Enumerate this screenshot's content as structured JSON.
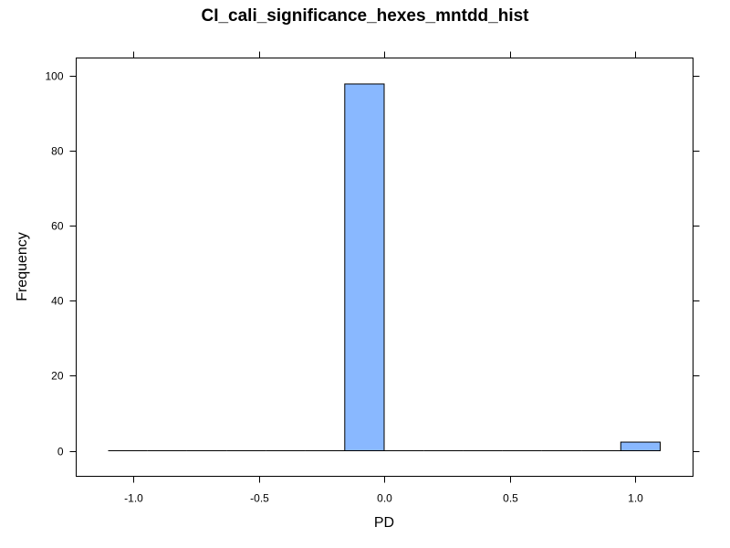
{
  "chart_data": {
    "type": "bar",
    "title": "CI_cali_significance_hexes_mntdd_hist",
    "xlabel": "PD",
    "ylabel": "Frequency",
    "xlim": [
      -1.1,
      1.1
    ],
    "ylim": [
      -7,
      104
    ],
    "x_ticks": [
      -1.0,
      -0.5,
      0.0,
      0.5,
      1.0
    ],
    "x_tick_labels": [
      "-1.0",
      "-0.5",
      "0.0",
      "0.5",
      "1.0"
    ],
    "y_ticks": [
      0,
      20,
      40,
      60,
      80,
      100
    ],
    "y_tick_labels": [
      "0",
      "20",
      "40",
      "60",
      "80",
      "100"
    ],
    "bin_start": -1.1,
    "bin_width": 0.1571,
    "bins": [
      {
        "x0": -1.1,
        "x1": -0.9429,
        "value": 0
      },
      {
        "x0": -0.9429,
        "x1": -0.7857,
        "value": 0
      },
      {
        "x0": -0.7857,
        "x1": -0.6286,
        "value": 0
      },
      {
        "x0": -0.6286,
        "x1": -0.4714,
        "value": 0
      },
      {
        "x0": -0.4714,
        "x1": -0.3143,
        "value": 0
      },
      {
        "x0": -0.3143,
        "x1": -0.1571,
        "value": 0
      },
      {
        "x0": -0.1571,
        "x1": 0.0,
        "value": 97.7
      },
      {
        "x0": 0.0,
        "x1": 0.1571,
        "value": 0
      },
      {
        "x0": 0.1571,
        "x1": 0.3143,
        "value": 0
      },
      {
        "x0": 0.3143,
        "x1": 0.4714,
        "value": 0
      },
      {
        "x0": 0.4714,
        "x1": 0.6286,
        "value": 0
      },
      {
        "x0": 0.6286,
        "x1": 0.7857,
        "value": 0
      },
      {
        "x0": 0.7857,
        "x1": 0.9429,
        "value": 0
      },
      {
        "x0": 0.9429,
        "x1": 1.1,
        "value": 2.3
      }
    ],
    "bar_color": "#89b8ff",
    "grid": false,
    "legend": "none"
  }
}
